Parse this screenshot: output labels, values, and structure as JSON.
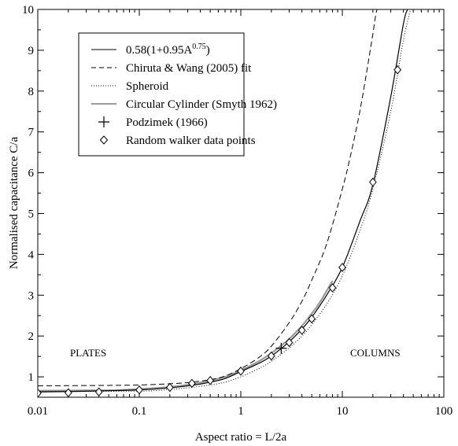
{
  "chart_data": {
    "type": "line",
    "xscale": "log",
    "xlim": [
      0.01,
      100
    ],
    "ylim": [
      0.5,
      10
    ],
    "xticks": [
      0.01,
      0.1,
      1,
      10,
      100
    ],
    "xtick_labels": [
      "0.01",
      "0.1",
      "1",
      "10",
      "100"
    ],
    "yticks": [
      1,
      2,
      3,
      4,
      5,
      6,
      7,
      8,
      9,
      10
    ],
    "ytick_labels": [
      "1",
      "2",
      "3",
      "4",
      "5",
      "6",
      "7",
      "8",
      "9",
      "10"
    ],
    "xlabel": "Aspect ratio = L/2a",
    "ylabel": "Normalised capacitance  C/a",
    "grid": false,
    "legend_position": "top-left",
    "annotations": {
      "left": "PLATES",
      "right": "COLUMNS"
    },
    "series": [
      {
        "name": "0.58(1+0.95A^0.75)",
        "label_main": "0.58(1+0.95A",
        "label_sup": "0.75",
        "label_end": ")",
        "style": "solid",
        "color": "#000000",
        "x": [
          0.01,
          0.02,
          0.05,
          0.1,
          0.2,
          0.35,
          0.5,
          0.7,
          1,
          1.5,
          2,
          3,
          4,
          5,
          7,
          10,
          15,
          20,
          30,
          40,
          44
        ],
        "y": [
          0.63,
          0.64,
          0.66,
          0.68,
          0.73,
          0.8,
          0.87,
          0.96,
          1.13,
          1.33,
          1.51,
          1.86,
          2.17,
          2.46,
          3.0,
          3.68,
          4.83,
          5.71,
          7.86,
          9.65,
          10.0
        ]
      },
      {
        "name": "Chiruta & Wang (2005) fit",
        "style": "dashed",
        "color": "#000000",
        "x": [
          0.01,
          0.05,
          0.1,
          0.2,
          0.3,
          0.5,
          0.7,
          1,
          1.5,
          2,
          3,
          4,
          5,
          7,
          10,
          12,
          15,
          18,
          20,
          22,
          25
        ],
        "y": [
          0.78,
          0.79,
          0.8,
          0.83,
          0.86,
          0.93,
          1.02,
          1.2,
          1.47,
          1.75,
          2.33,
          2.85,
          3.37,
          4.25,
          5.6,
          6.4,
          7.55,
          8.7,
          9.4,
          10.0,
          10.0
        ]
      },
      {
        "name": "Spheroid",
        "style": "dotted",
        "color": "#000000",
        "x": [
          0.01,
          0.1,
          0.2,
          0.3,
          0.5,
          0.7,
          1,
          1.5,
          2,
          3,
          4,
          5,
          7,
          10,
          15,
          20,
          30,
          40,
          47
        ],
        "y": [
          0.64,
          0.65,
          0.69,
          0.73,
          0.8,
          0.87,
          1.0,
          1.2,
          1.38,
          1.71,
          2.0,
          2.28,
          2.78,
          3.47,
          4.6,
          5.6,
          7.5,
          9.25,
          10.0
        ]
      },
      {
        "name": "Circular Cylinder (Smyth 1962)",
        "style": "solid-gray",
        "color": "#9a9a9a",
        "x": [
          0.01,
          0.05,
          0.1,
          0.2,
          0.35,
          0.5,
          0.7,
          1,
          1.5,
          2,
          3,
          4,
          5,
          6,
          8
        ],
        "y": [
          0.66,
          0.67,
          0.7,
          0.75,
          0.83,
          0.91,
          1.0,
          1.16,
          1.38,
          1.58,
          1.93,
          2.25,
          2.55,
          2.82,
          3.35
        ]
      },
      {
        "name": "Podzimek (1966)",
        "style": "plus",
        "color": "#000000",
        "x": [
          2.5
        ],
        "y": [
          1.7
        ]
      },
      {
        "name": "Random walker data points",
        "style": "diamond",
        "color": "#000000",
        "x": [
          0.01,
          0.02,
          0.04,
          0.1,
          0.2,
          0.33,
          0.5,
          1,
          2,
          3,
          4,
          5,
          8,
          10,
          20,
          35
        ],
        "y": [
          0.6,
          0.61,
          0.63,
          0.68,
          0.74,
          0.84,
          0.91,
          1.14,
          1.51,
          1.84,
          2.14,
          2.42,
          3.18,
          3.68,
          5.77,
          8.52
        ]
      }
    ]
  }
}
